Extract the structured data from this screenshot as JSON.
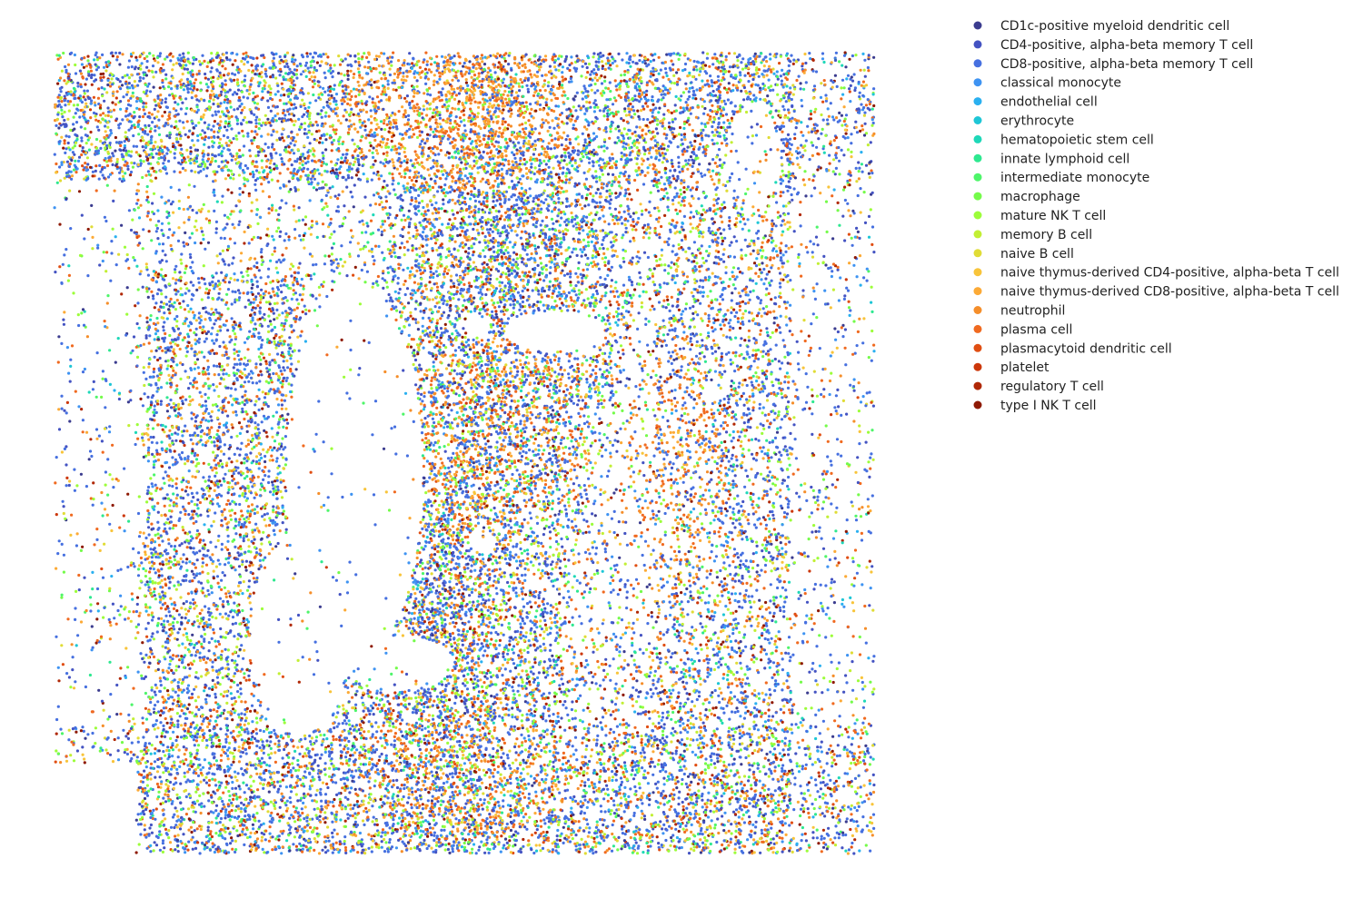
{
  "chart_data": {
    "type": "scatter",
    "title": "",
    "xlabel": "",
    "ylabel": "",
    "axes_visible": false,
    "grid": false,
    "legend_placement": "right",
    "marker": "dot",
    "categories": [
      {
        "name": "CD1c-positive myeloid dendritic cell",
        "color": "#3b3c8f",
        "weight": 3
      },
      {
        "name": "CD4-positive, alpha-beta memory T cell",
        "color": "#4453c2",
        "weight": 10
      },
      {
        "name": "CD8-positive, alpha-beta memory T cell",
        "color": "#4670e0",
        "weight": 28
      },
      {
        "name": "classical monocyte",
        "color": "#3e93f2",
        "weight": 6
      },
      {
        "name": "endothelial cell",
        "color": "#2ab0f0",
        "weight": 2
      },
      {
        "name": "erythrocyte",
        "color": "#1ec6d6",
        "weight": 1
      },
      {
        "name": "hematopoietic stem cell",
        "color": "#1ed8b8",
        "weight": 1
      },
      {
        "name": "innate lymphoid cell",
        "color": "#2ee890",
        "weight": 2
      },
      {
        "name": "intermediate monocyte",
        "color": "#4ef56a",
        "weight": 2
      },
      {
        "name": "macrophage",
        "color": "#74fb4a",
        "weight": 4
      },
      {
        "name": "mature NK T cell",
        "color": "#9cfd3a",
        "weight": 5
      },
      {
        "name": "memory B cell",
        "color": "#c2ef34",
        "weight": 3
      },
      {
        "name": "naive B cell",
        "color": "#e0dc36",
        "weight": 3
      },
      {
        "name": "naive thymus-derived CD4-positive, alpha-beta T cell",
        "color": "#f8c43a",
        "weight": 4
      },
      {
        "name": "naive thymus-derived CD8-positive, alpha-beta T cell",
        "color": "#fcaa36",
        "weight": 3
      },
      {
        "name": "neutrophil",
        "color": "#f58e2a",
        "weight": 4
      },
      {
        "name": "plasma cell",
        "color": "#f06a20",
        "weight": 9
      },
      {
        "name": "plasmacytoid dendritic cell",
        "color": "#e04e12",
        "weight": 2
      },
      {
        "name": "platelet",
        "color": "#cc370a",
        "weight": 1
      },
      {
        "name": "regulatory T cell",
        "color": "#b02806",
        "weight": 2
      },
      {
        "name": "type I NK T cell",
        "color": "#8e1a04",
        "weight": 2
      }
    ]
  }
}
